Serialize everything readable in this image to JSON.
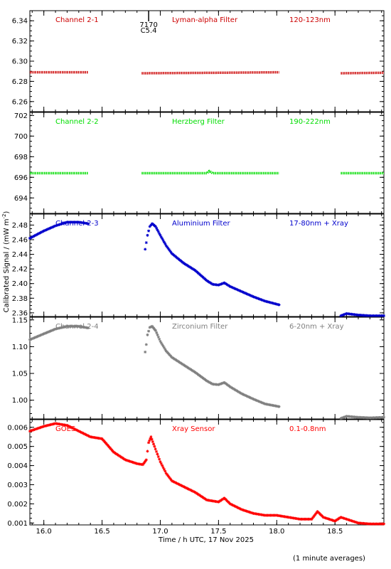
{
  "chart_data": {
    "type": "scatter",
    "xlabel": "Time / h UTC, 17 Nov 2025",
    "ylabel": "Calibrated Signal / (mW m",
    "ylabel_sup": "-2",
    "ylabel_end": ")",
    "xlim": [
      15.88,
      18.92
    ],
    "x_ticks": [
      16.0,
      16.5,
      17.0,
      17.5,
      18.0,
      18.5
    ],
    "x_tick_labels": [
      "16.0",
      "16.5",
      "17.0",
      "17.5",
      "18.0",
      "18.5"
    ],
    "footnote": "(1 minute averages)",
    "flare_marker": {
      "x": 16.9,
      "id": "7170",
      "class": "C5.4"
    },
    "panels": [
      {
        "channel": "Channel 2-1",
        "filter": "Lyman-alpha Filter",
        "band": "120-123nm",
        "color": "#cc0000",
        "ylim": [
          6.25,
          6.35
        ],
        "y_ticks": [
          6.26,
          6.28,
          6.3,
          6.32,
          6.34
        ],
        "y_tick_labels": [
          "6.26",
          "6.28",
          "6.30",
          "6.32",
          "6.34"
        ],
        "style": "line",
        "segments": [
          [
            [
              15.88,
              6.289
            ],
            [
              16.38,
              6.289
            ]
          ],
          [
            [
              16.84,
              6.288
            ],
            [
              17.5,
              6.2885
            ],
            [
              18.02,
              6.289
            ]
          ],
          [
            [
              18.55,
              6.288
            ],
            [
              18.92,
              6.2885
            ]
          ]
        ]
      },
      {
        "channel": "Channel 2-2",
        "filter": "Herzberg Filter",
        "band": "190-222nm",
        "color": "#00dd00",
        "ylim": [
          692.5,
          702.3
        ],
        "y_ticks": [
          694,
          696,
          698,
          700,
          702
        ],
        "y_tick_labels": [
          "694",
          "696",
          "698",
          "700",
          "702"
        ],
        "style": "line",
        "segments": [
          [
            [
              15.88,
              696.4
            ],
            [
              16.38,
              696.4
            ]
          ],
          [
            [
              16.84,
              696.4
            ],
            [
              17.4,
              696.4
            ],
            [
              17.42,
              696.6
            ],
            [
              17.45,
              696.4
            ],
            [
              18.02,
              696.4
            ]
          ],
          [
            [
              18.55,
              696.4
            ],
            [
              18.92,
              696.4
            ]
          ]
        ]
      },
      {
        "channel": "Channel 2-3",
        "filter": "Aluminium Filter",
        "band": "17-80nm + Xray",
        "color": "#0000cc",
        "ylim": [
          2.355,
          2.495
        ],
        "y_ticks": [
          2.36,
          2.38,
          2.4,
          2.42,
          2.44,
          2.46,
          2.48
        ],
        "y_tick_labels": [
          "2.36",
          "2.38",
          "2.40",
          "2.42",
          "2.44",
          "2.46",
          "2.48"
        ],
        "style": "stars",
        "segments": [
          [
            [
              15.88,
              2.462
            ],
            [
              16.0,
              2.472
            ],
            [
              16.1,
              2.479
            ],
            [
              16.2,
              2.484
            ],
            [
              16.3,
              2.484
            ],
            [
              16.38,
              2.482
            ]
          ],
          [
            [
              16.87,
              2.447
            ],
            [
              16.88,
              2.456
            ],
            [
              16.89,
              2.466
            ],
            [
              16.91,
              2.478
            ],
            [
              16.93,
              2.482
            ],
            [
              16.96,
              2.478
            ],
            [
              17.0,
              2.466
            ],
            [
              17.05,
              2.452
            ],
            [
              17.1,
              2.441
            ],
            [
              17.2,
              2.428
            ],
            [
              17.3,
              2.418
            ],
            [
              17.4,
              2.404
            ],
            [
              17.45,
              2.399
            ],
            [
              17.5,
              2.398
            ],
            [
              17.55,
              2.401
            ],
            [
              17.6,
              2.396
            ],
            [
              17.7,
              2.389
            ],
            [
              17.8,
              2.382
            ],
            [
              17.9,
              2.376
            ],
            [
              18.02,
              2.371
            ]
          ],
          [
            [
              18.55,
              2.356
            ],
            [
              18.6,
              2.359
            ],
            [
              18.7,
              2.357
            ],
            [
              18.8,
              2.356
            ],
            [
              18.92,
              2.356
            ]
          ]
        ]
      },
      {
        "channel": "Channel 2-4",
        "filter": "Zirconium Filter",
        "band": "6-20nm + Xray",
        "color": "#808080",
        "ylim": [
          0.965,
          1.155
        ],
        "y_ticks": [
          1.0,
          1.05,
          1.1,
          1.15
        ],
        "y_tick_labels": [
          "1.00",
          "1.05",
          "1.10",
          "1.15"
        ],
        "style": "stars",
        "segments": [
          [
            [
              15.88,
              1.113
            ],
            [
              16.0,
              1.124
            ],
            [
              16.1,
              1.133
            ],
            [
              16.2,
              1.138
            ],
            [
              16.3,
              1.138
            ],
            [
              16.38,
              1.135
            ]
          ],
          [
            [
              16.87,
              1.09
            ],
            [
              16.88,
              1.104
            ],
            [
              16.89,
              1.122
            ],
            [
              16.91,
              1.136
            ],
            [
              16.93,
              1.138
            ],
            [
              16.96,
              1.13
            ],
            [
              17.0,
              1.11
            ],
            [
              17.05,
              1.092
            ],
            [
              17.1,
              1.08
            ],
            [
              17.2,
              1.066
            ],
            [
              17.3,
              1.052
            ],
            [
              17.4,
              1.036
            ],
            [
              17.45,
              1.03
            ],
            [
              17.5,
              1.029
            ],
            [
              17.55,
              1.033
            ],
            [
              17.6,
              1.025
            ],
            [
              17.7,
              1.012
            ],
            [
              17.8,
              1.002
            ],
            [
              17.9,
              0.993
            ],
            [
              18.02,
              0.988
            ]
          ],
          [
            [
              18.55,
              0.966
            ],
            [
              18.6,
              0.97
            ],
            [
              18.7,
              0.968
            ],
            [
              18.8,
              0.967
            ],
            [
              18.92,
              0.968
            ]
          ]
        ]
      },
      {
        "channel": "GOES",
        "filter": "Xray Sensor",
        "band": "0.1-0.8nm",
        "color": "#ff0000",
        "ylim": [
          0.0009,
          0.0064
        ],
        "y_ticks": [
          0.001,
          0.002,
          0.003,
          0.004,
          0.005,
          0.006
        ],
        "y_tick_labels": [
          "0.001",
          "0.002",
          "0.003",
          "0.004",
          "0.005",
          "0.006"
        ],
        "style": "stars",
        "segments": [
          [
            [
              15.88,
              0.0058
            ],
            [
              16.0,
              0.00605
            ],
            [
              16.1,
              0.0062
            ],
            [
              16.2,
              0.0061
            ],
            [
              16.3,
              0.0058
            ],
            [
              16.4,
              0.0055
            ],
            [
              16.5,
              0.0054
            ],
            [
              16.6,
              0.0047
            ],
            [
              16.7,
              0.0043
            ],
            [
              16.8,
              0.0041
            ],
            [
              16.85,
              0.00405
            ],
            [
              16.88,
              0.0043
            ],
            [
              16.9,
              0.0052
            ],
            [
              16.92,
              0.0055
            ],
            [
              16.95,
              0.005
            ],
            [
              17.0,
              0.0042
            ],
            [
              17.05,
              0.0036
            ],
            [
              17.1,
              0.0032
            ],
            [
              17.2,
              0.0029
            ],
            [
              17.3,
              0.0026
            ],
            [
              17.4,
              0.0022
            ],
            [
              17.5,
              0.0021
            ],
            [
              17.55,
              0.0023
            ],
            [
              17.6,
              0.002
            ],
            [
              17.7,
              0.0017
            ],
            [
              17.8,
              0.0015
            ],
            [
              17.9,
              0.0014
            ],
            [
              18.0,
              0.0014
            ],
            [
              18.1,
              0.0013
            ],
            [
              18.2,
              0.0012
            ],
            [
              18.3,
              0.0012
            ],
            [
              18.35,
              0.0016
            ],
            [
              18.4,
              0.0013
            ],
            [
              18.5,
              0.0011
            ],
            [
              18.55,
              0.0013
            ],
            [
              18.6,
              0.0012
            ],
            [
              18.7,
              0.001
            ],
            [
              18.8,
              0.00095
            ],
            [
              18.92,
              0.00095
            ]
          ]
        ]
      }
    ]
  }
}
